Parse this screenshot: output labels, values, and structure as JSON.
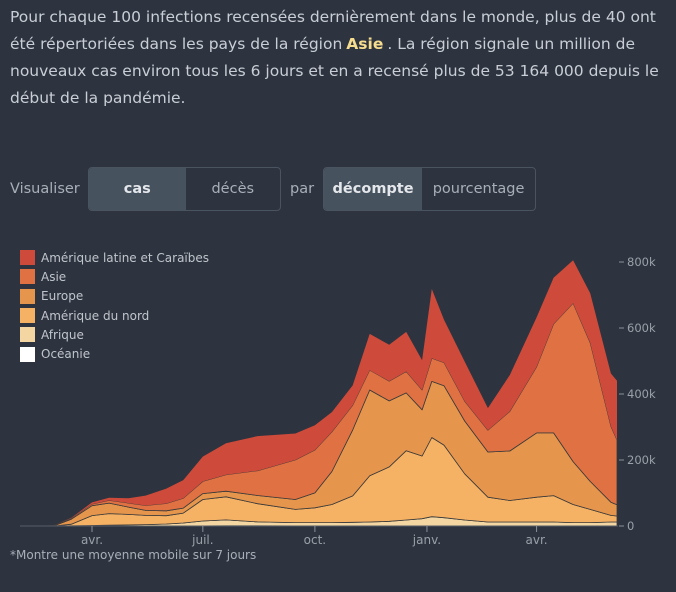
{
  "intro": {
    "p1": "Pour chaque 100 infections recensées dernièrement dans le monde, plus de 40 ont été répertoriées dans les pays de la région",
    "highlight": "Asie",
    "p2": ". La région signale un million de nouveaux cas environ tous les 6 jours et en a recensé plus de 53 164 000 depuis le début de la pandémie."
  },
  "controls": {
    "visualiser": "Visualiser",
    "cas": "cas",
    "deces": "décès",
    "par": "par",
    "decompte": "décompte",
    "pourcentage": "pourcentage"
  },
  "footnote": "*Montre une moyenne mobile sur 7 jours",
  "chart_data": {
    "type": "area",
    "stacked": true,
    "unit": "nouveaux cas (moyenne 7 jours)",
    "x_ticks": [
      {
        "date": "2020-04-01",
        "label": "avr."
      },
      {
        "date": "2020-07-01",
        "label": "juil."
      },
      {
        "date": "2020-10-01",
        "label": "oct."
      },
      {
        "date": "2021-01-01",
        "label": "janv."
      },
      {
        "date": "2021-04-01",
        "label": "avr."
      }
    ],
    "y_ticks": [
      {
        "v": 0,
        "label": "0"
      },
      {
        "v": 200,
        "label": "200k"
      },
      {
        "v": 400,
        "label": "400k"
      },
      {
        "v": 600,
        "label": "600k"
      },
      {
        "v": 800,
        "label": "800k"
      }
    ],
    "ylim": [
      0,
      800
    ],
    "xlim": [
      "2020-02-01",
      "2021-06-06"
    ],
    "legend_position": "top-left",
    "dates": [
      "2020-02-20",
      "2020-03-01",
      "2020-03-15",
      "2020-04-01",
      "2020-04-15",
      "2020-05-01",
      "2020-05-15",
      "2020-06-01",
      "2020-06-15",
      "2020-07-01",
      "2020-07-20",
      "2020-08-15",
      "2020-09-15",
      "2020-10-01",
      "2020-10-15",
      "2020-11-01",
      "2020-11-15",
      "2020-12-01",
      "2020-12-15",
      "2020-12-28",
      "2021-01-05",
      "2021-01-15",
      "2021-02-01",
      "2021-02-20",
      "2021-03-10",
      "2021-04-01",
      "2021-04-15",
      "2021-05-01",
      "2021-05-15",
      "2021-06-01",
      "2021-06-06"
    ],
    "series": [
      {
        "name": "Océanie",
        "color": "#ffffff",
        "values": [
          0,
          0,
          0,
          0.5,
          0.5,
          0.3,
          0.2,
          0.2,
          0.2,
          0.3,
          0.5,
          0.5,
          0.3,
          0.2,
          0.2,
          0.2,
          0.2,
          0.2,
          0.2,
          0.2,
          0.3,
          0.3,
          0.2,
          0.2,
          0.2,
          0.2,
          0.2,
          0.2,
          0.2,
          0.2,
          0.2
        ]
      },
      {
        "name": "Afrique",
        "color": "#f3d6a1",
        "values": [
          0,
          0,
          0.5,
          1,
          2,
          3,
          4,
          6,
          9,
          15,
          18,
          12,
          10,
          10,
          10,
          11,
          12,
          14,
          18,
          22,
          28,
          25,
          18,
          12,
          12,
          12,
          12,
          10,
          10,
          12,
          12
        ]
      },
      {
        "name": "Amérique du nord",
        "color": "#f5b164",
        "values": [
          0,
          0,
          5,
          30,
          35,
          32,
          28,
          25,
          30,
          65,
          70,
          55,
          40,
          45,
          55,
          80,
          140,
          165,
          210,
          190,
          240,
          220,
          140,
          75,
          65,
          75,
          80,
          55,
          40,
          20,
          18
        ]
      },
      {
        "name": "Europe",
        "color": "#e6954d",
        "values": [
          0,
          1,
          15,
          30,
          32,
          22,
          15,
          15,
          15,
          18,
          17,
          25,
          30,
          45,
          100,
          200,
          260,
          200,
          175,
          140,
          170,
          180,
          160,
          137,
          150,
          195,
          190,
          130,
          85,
          40,
          34
        ]
      },
      {
        "name": "Asie",
        "color": "#e07142",
        "values": [
          0,
          1,
          3,
          5,
          8,
          12,
          15,
          22,
          30,
          37,
          50,
          75,
          120,
          130,
          120,
          75,
          60,
          60,
          65,
          60,
          70,
          70,
          60,
          66,
          120,
          200,
          330,
          480,
          420,
          230,
          196
        ]
      },
      {
        "name": "Amérique latine et Caraïbes",
        "color": "#ce4a3a",
        "values": [
          0,
          0,
          1,
          5,
          8,
          15,
          30,
          45,
          55,
          75,
          95,
          105,
          80,
          75,
          60,
          60,
          110,
          110,
          120,
          90,
          210,
          130,
          120,
          67,
          110,
          150,
          140,
          130,
          150,
          160,
          180
        ]
      }
    ]
  }
}
